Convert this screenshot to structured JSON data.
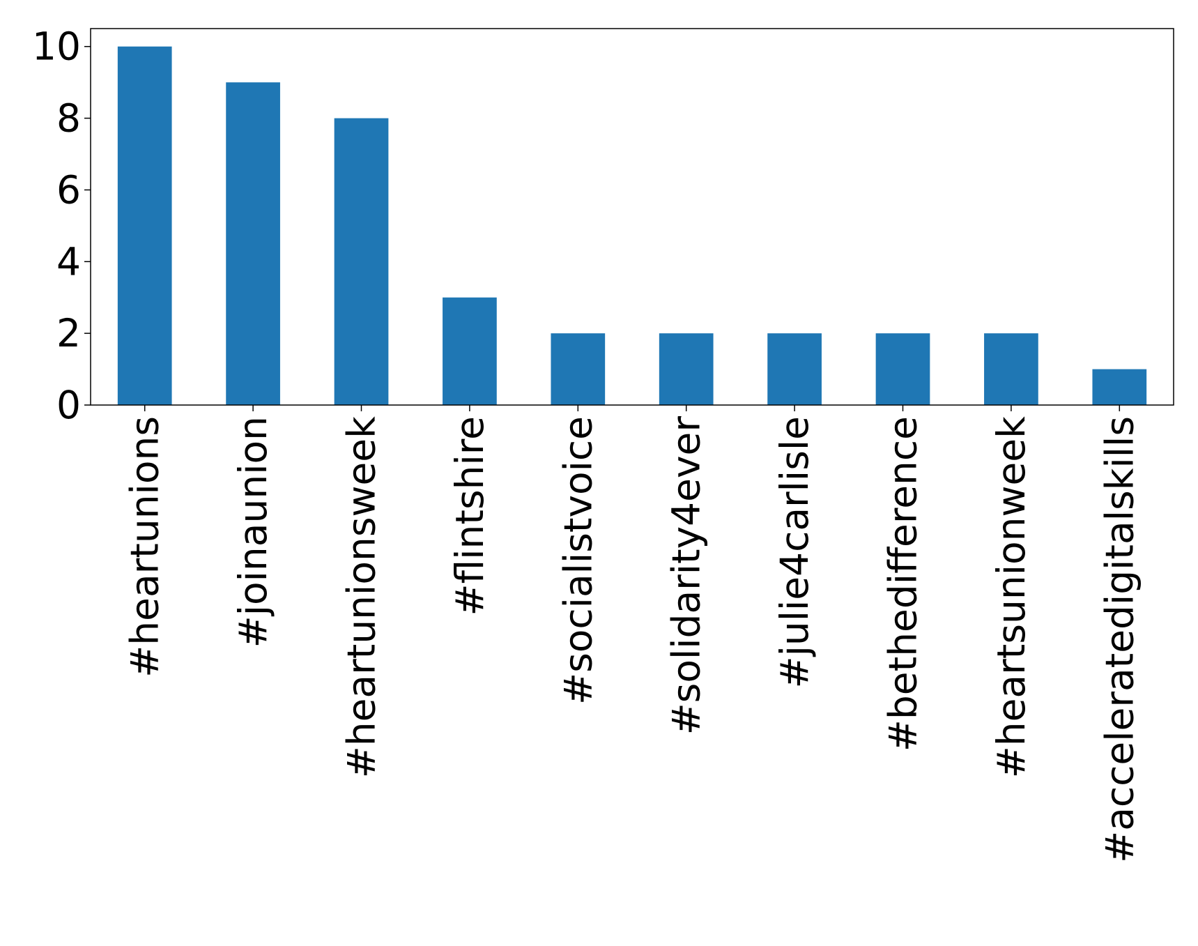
{
  "chart_data": {
    "type": "bar",
    "categories": [
      "#heartunions",
      "#joinaunion",
      "#heartunionsweek",
      "#flintshire",
      "#socialistvoice",
      "#solidarity4ever",
      "#julie4carlisle",
      "#bethedifference",
      "#heartsunionweek",
      "#acceleratedigitalskills"
    ],
    "values": [
      10,
      9,
      8,
      3,
      2,
      2,
      2,
      2,
      2,
      1
    ],
    "color": "#1f77b4",
    "ylim": [
      0,
      10.5
    ],
    "yticks": [
      0,
      2,
      4,
      6,
      8,
      10
    ],
    "grid": false
  }
}
